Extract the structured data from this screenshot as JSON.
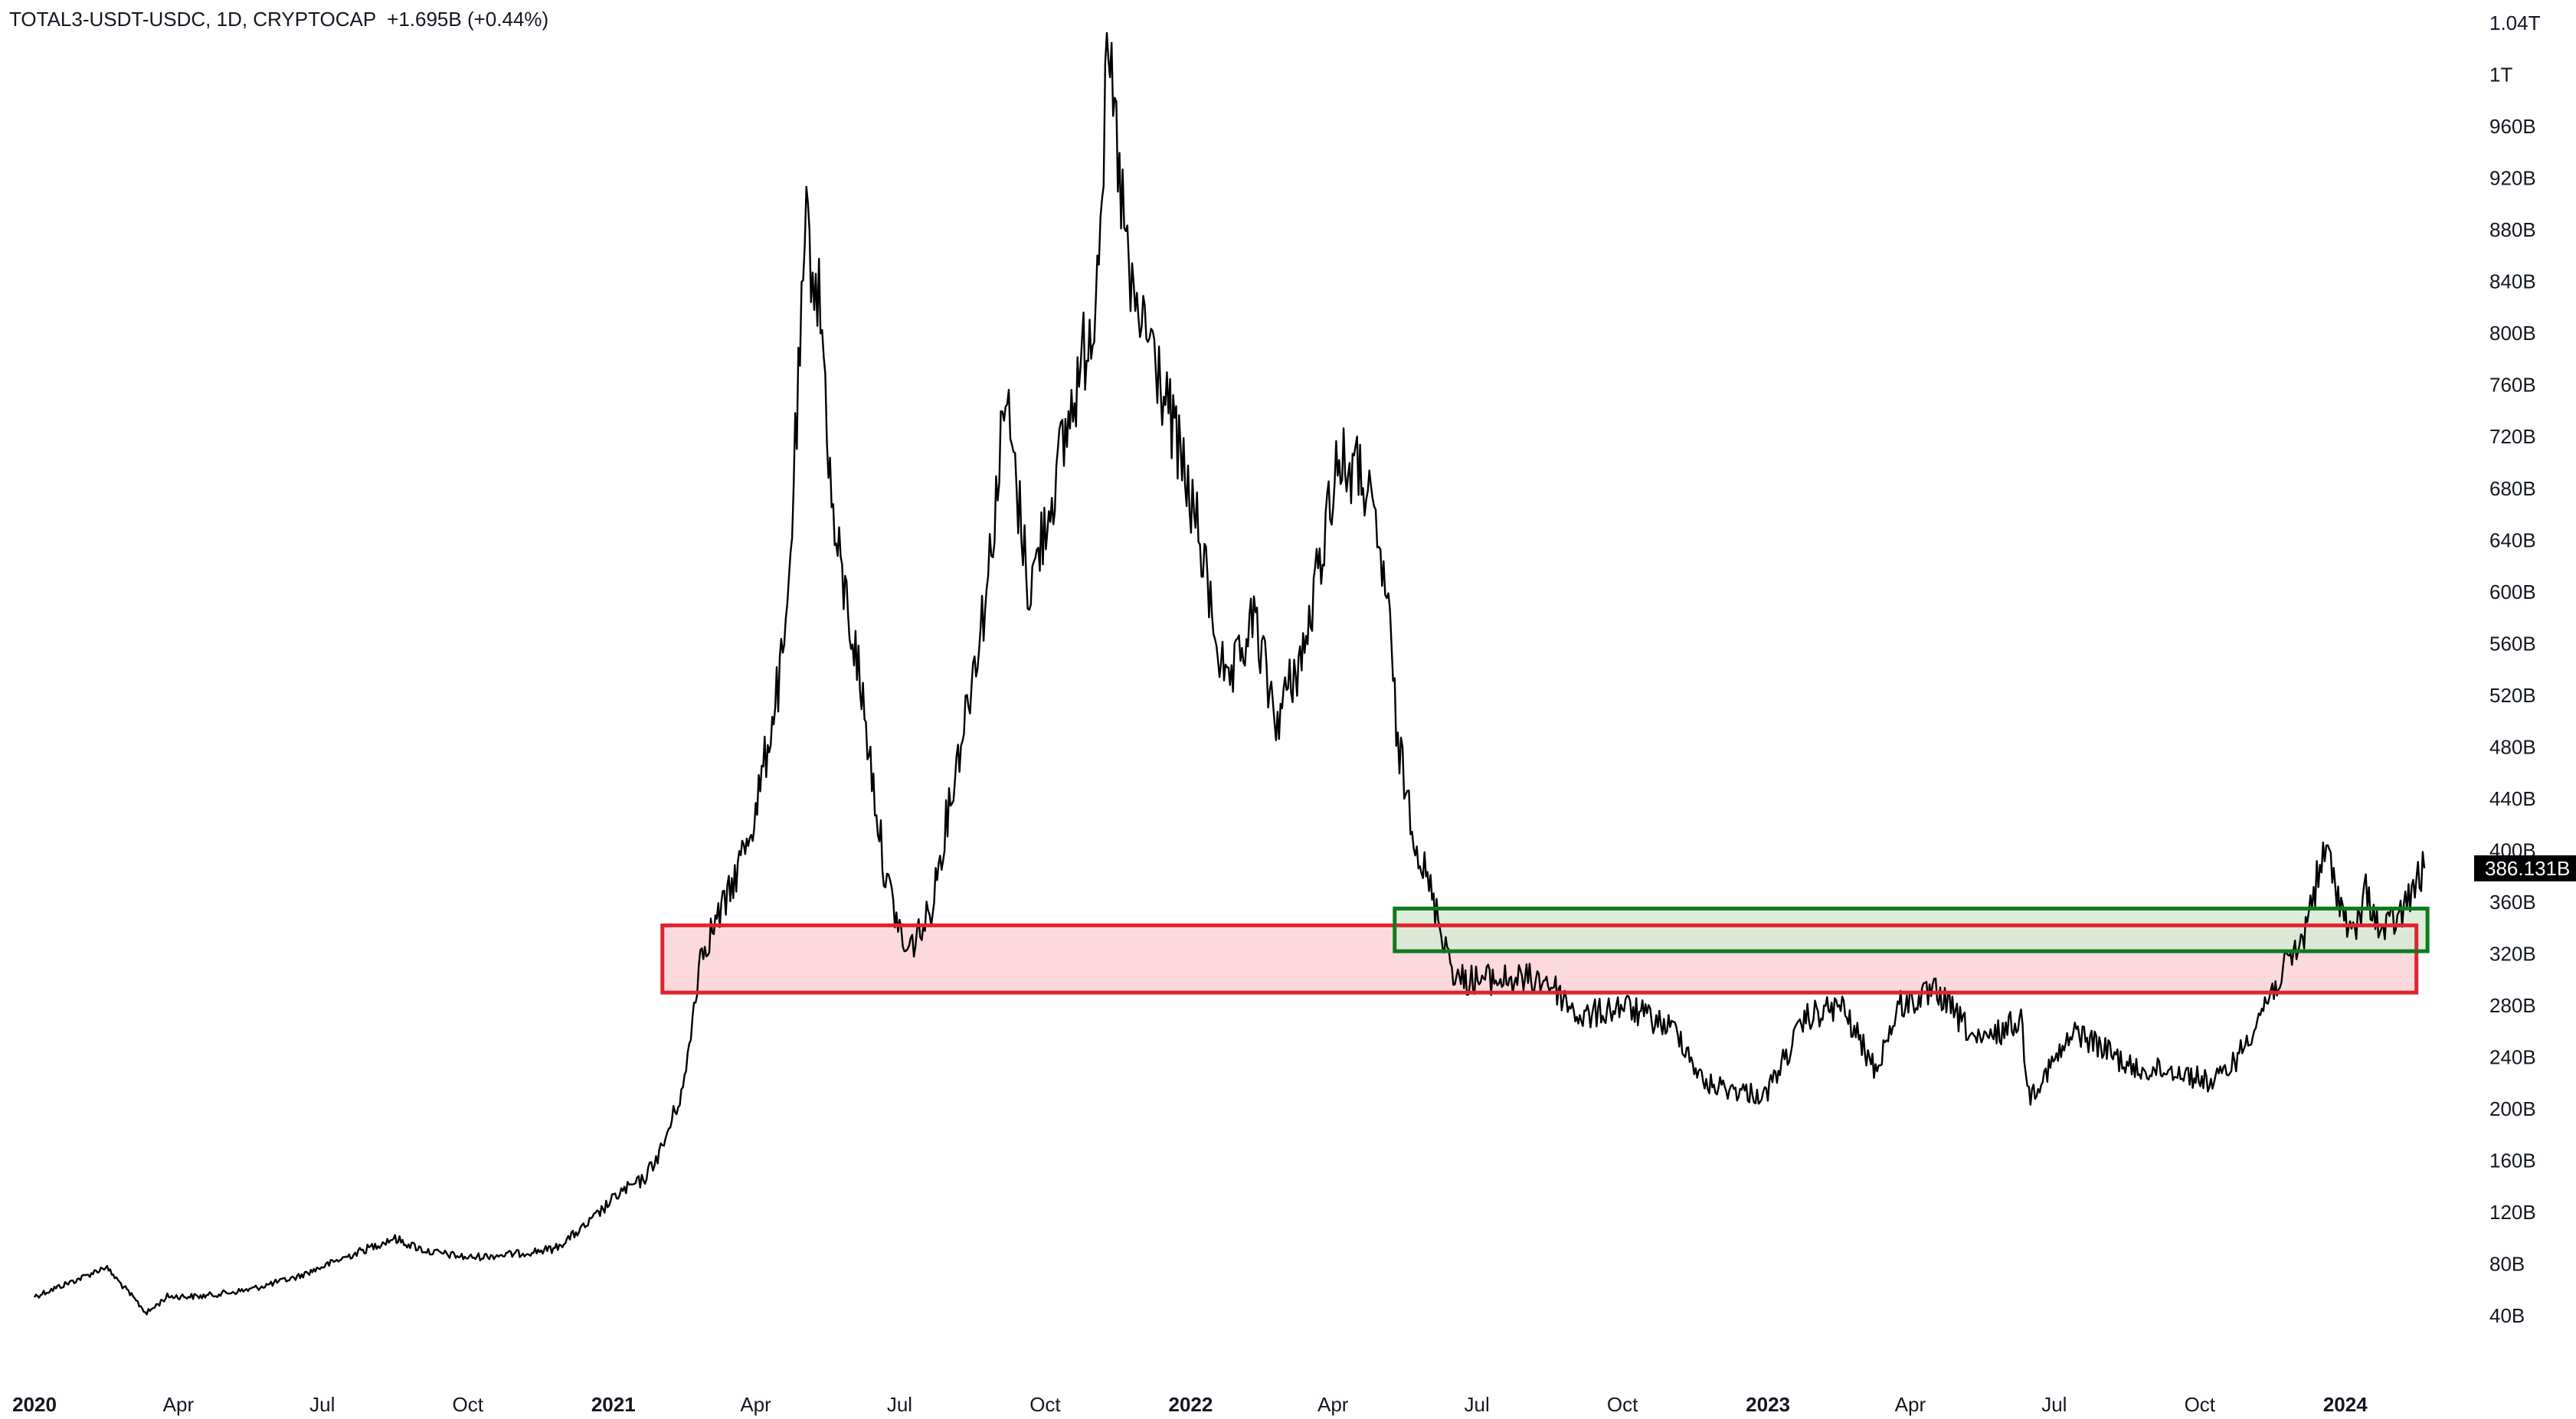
{
  "header": {
    "symbol_line": "TOTAL3-USDT-USDC, 1D, CRYPTOCAP  +1.695B (+0.44%)"
  },
  "chart_data": {
    "type": "line",
    "title": "TOTAL3-USDT-USDC, 1D, CRYPTOCAP  +1.695B (+0.44%)",
    "xlabel": "",
    "ylabel": "",
    "y_unit": "USD (billions)",
    "ylim": [
      20,
      1040
    ],
    "xlim": [
      "2020-01-01",
      "2024-02-20"
    ],
    "grid": false,
    "line_color": "#000000",
    "y_ticks": [
      {
        "value": 1040,
        "label": "1.04T"
      },
      {
        "value": 1000,
        "label": "1T"
      },
      {
        "value": 960,
        "label": "960B"
      },
      {
        "value": 920,
        "label": "920B"
      },
      {
        "value": 880,
        "label": "880B"
      },
      {
        "value": 840,
        "label": "840B"
      },
      {
        "value": 800,
        "label": "800B"
      },
      {
        "value": 760,
        "label": "760B"
      },
      {
        "value": 720,
        "label": "720B"
      },
      {
        "value": 680,
        "label": "680B"
      },
      {
        "value": 640,
        "label": "640B"
      },
      {
        "value": 600,
        "label": "600B"
      },
      {
        "value": 560,
        "label": "560B"
      },
      {
        "value": 520,
        "label": "520B"
      },
      {
        "value": 480,
        "label": "480B"
      },
      {
        "value": 440,
        "label": "440B"
      },
      {
        "value": 400,
        "label": "400B"
      },
      {
        "value": 360,
        "label": "360B"
      },
      {
        "value": 320,
        "label": "320B"
      },
      {
        "value": 280,
        "label": "280B"
      },
      {
        "value": 240,
        "label": "240B"
      },
      {
        "value": 200,
        "label": "200B"
      },
      {
        "value": 160,
        "label": "160B"
      },
      {
        "value": 120,
        "label": "120B"
      },
      {
        "value": 80,
        "label": "80B"
      },
      {
        "value": 40,
        "label": "40B"
      }
    ],
    "x_ticks": [
      {
        "date": "2020-01-01",
        "label": "2020",
        "year": true
      },
      {
        "date": "2020-04-01",
        "label": "Apr",
        "year": false
      },
      {
        "date": "2020-07-01",
        "label": "Jul",
        "year": false
      },
      {
        "date": "2020-10-01",
        "label": "Oct",
        "year": false
      },
      {
        "date": "2021-01-01",
        "label": "2021",
        "year": true
      },
      {
        "date": "2021-04-01",
        "label": "Apr",
        "year": false
      },
      {
        "date": "2021-07-01",
        "label": "Jul",
        "year": false
      },
      {
        "date": "2021-10-01",
        "label": "Oct",
        "year": false
      },
      {
        "date": "2022-01-01",
        "label": "2022",
        "year": true
      },
      {
        "date": "2022-04-01",
        "label": "Apr",
        "year": false
      },
      {
        "date": "2022-07-01",
        "label": "Jul",
        "year": false
      },
      {
        "date": "2022-10-01",
        "label": "Oct",
        "year": false
      },
      {
        "date": "2023-01-01",
        "label": "2023",
        "year": true
      },
      {
        "date": "2023-04-01",
        "label": "Apr",
        "year": false
      },
      {
        "date": "2023-07-01",
        "label": "Jul",
        "year": false
      },
      {
        "date": "2023-10-01",
        "label": "Oct",
        "year": false
      },
      {
        "date": "2024-01-01",
        "label": "2024",
        "year": true
      }
    ],
    "series": [
      {
        "x": [
          "2020-01-01",
          "2020-02-01",
          "2020-02-15",
          "2020-03-12",
          "2020-03-25",
          "2020-04-15",
          "2020-05-15",
          "2020-06-15",
          "2020-07-15",
          "2020-08-15",
          "2020-09-05",
          "2020-10-01",
          "2020-11-01",
          "2020-11-25",
          "2020-12-15",
          "2021-01-05",
          "2021-01-20",
          "2021-02-01",
          "2021-02-15",
          "2021-02-25",
          "2021-03-15",
          "2021-04-01",
          "2021-04-20",
          "2021-05-03",
          "2021-05-12",
          "2021-05-20",
          "2021-06-05",
          "2021-06-22",
          "2021-07-05",
          "2021-07-20",
          "2021-08-05",
          "2021-08-25",
          "2021-09-06",
          "2021-09-21",
          "2021-10-10",
          "2021-11-01",
          "2021-11-10",
          "2021-11-25",
          "2021-12-05",
          "2021-12-20",
          "2022-01-05",
          "2022-01-24",
          "2022-02-10",
          "2022-02-24",
          "2022-03-15",
          "2022-04-03",
          "2022-04-20",
          "2022-05-05",
          "2022-05-12",
          "2022-05-25",
          "2022-06-18",
          "2022-07-10",
          "2022-08-14",
          "2022-09-05",
          "2022-10-01",
          "2022-11-05",
          "2022-11-21",
          "2022-12-30",
          "2023-01-25",
          "2023-02-16",
          "2023-03-10",
          "2023-03-25",
          "2023-04-18",
          "2023-05-15",
          "2023-06-10",
          "2023-06-15",
          "2023-07-15",
          "2023-08-10",
          "2023-08-20",
          "2023-09-15",
          "2023-10-10",
          "2023-10-25",
          "2023-11-15",
          "2023-12-05",
          "2023-12-10",
          "2023-12-20",
          "2024-01-05",
          "2024-01-15",
          "2024-01-23",
          "2024-02-05",
          "2024-02-20"
        ],
        "y": [
          55,
          70,
          78,
          42,
          55,
          55,
          60,
          70,
          85,
          100,
          90,
          85,
          88,
          92,
          110,
          135,
          145,
          170,
          220,
          320,
          365,
          430,
          560,
          880,
          820,
          650,
          540,
          380,
          320,
          350,
          460,
          600,
          750,
          600,
          700,
          820,
          1010,
          820,
          800,
          730,
          650,
          520,
          580,
          500,
          560,
          700,
          690,
          600,
          480,
          400,
          300,
          300,
          300,
          270,
          280,
          260,
          220,
          210,
          270,
          280,
          230,
          280,
          290,
          250,
          270,
          210,
          260,
          240,
          230,
          230,
          220,
          240,
          290,
          330,
          360,
          400,
          330,
          370,
          335,
          350,
          386.131
        ]
      }
    ],
    "annotations": [
      {
        "type": "rect",
        "name": "red-zone",
        "x0": "2021-02-01",
        "x1": "2024-02-15",
        "y0": 290,
        "y1": 342,
        "stroke": "#e0242f",
        "fill": "#fcd2d7"
      },
      {
        "type": "rect",
        "name": "green-zone",
        "x0": "2022-05-10",
        "x1": "2024-02-22",
        "y0": 322,
        "y1": 355,
        "stroke": "#0f7a1d",
        "fill": "#d6ead4"
      }
    ],
    "last_price": {
      "value": 386.131,
      "label": "386.131B",
      "bg_color": "#000000"
    }
  }
}
